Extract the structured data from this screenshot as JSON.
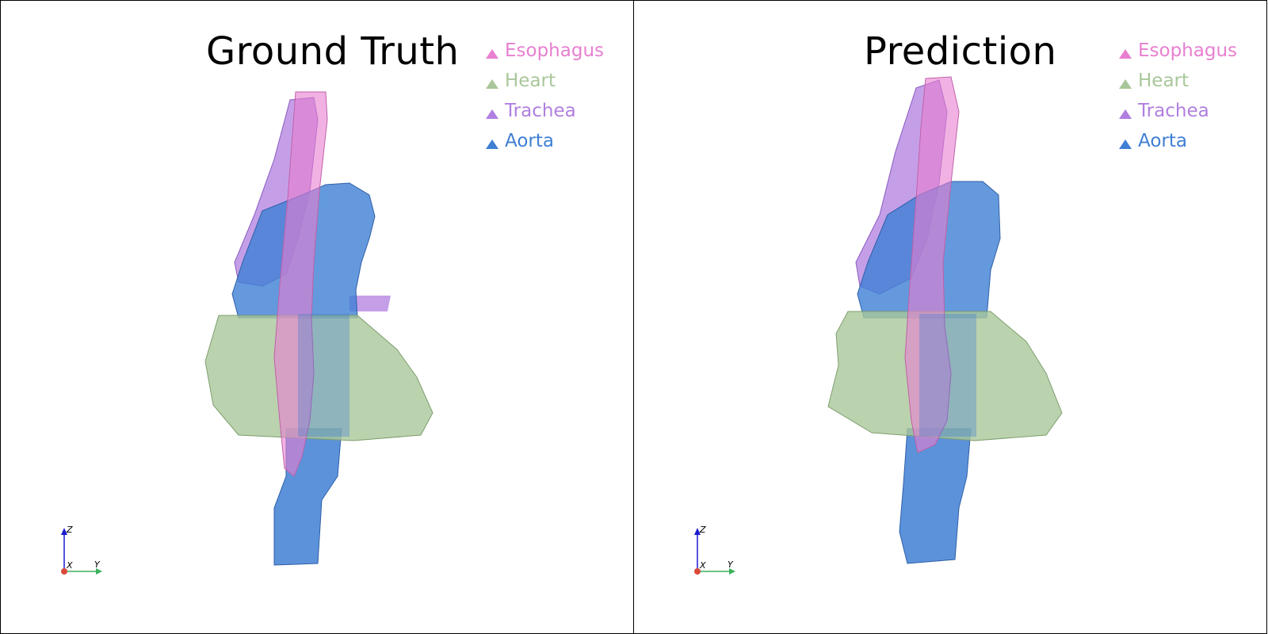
{
  "panels": [
    {
      "title": "Ground Truth",
      "legend": [
        {
          "label": "Esophagus",
          "color": "#e87fd0"
        },
        {
          "label": "Heart",
          "color": "#a9c79a"
        },
        {
          "label": "Trachea",
          "color": "#b07fe0"
        },
        {
          "label": "Aorta",
          "color": "#3f7fd4"
        }
      ],
      "axes": {
        "z": "Z",
        "x": "X",
        "y": "Y"
      }
    },
    {
      "title": "Prediction",
      "legend": [
        {
          "label": "Esophagus",
          "color": "#e87fd0"
        },
        {
          "label": "Heart",
          "color": "#a9c79a"
        },
        {
          "label": "Trachea",
          "color": "#b07fe0"
        },
        {
          "label": "Aorta",
          "color": "#3f7fd4"
        }
      ],
      "axes": {
        "z": "Z",
        "x": "X",
        "y": "Y"
      }
    }
  ]
}
